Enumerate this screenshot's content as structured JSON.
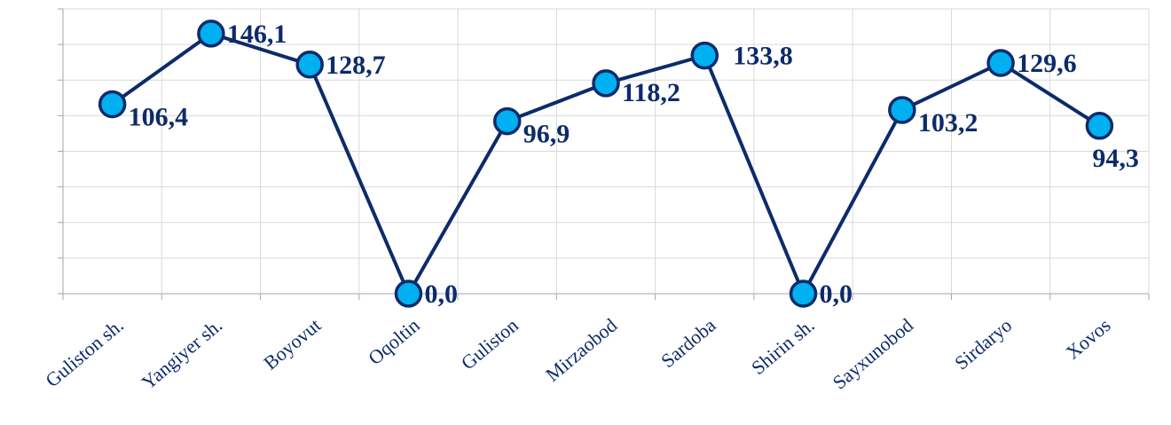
{
  "chart_data": {
    "type": "line",
    "title": "",
    "xlabel": "",
    "ylabel": "",
    "categories": [
      "Guliston  sh.",
      "Yangiyer sh.",
      "Boyovut",
      "Oqoltin",
      "Guliston",
      "Mirzaobod",
      "Sardoba",
      "Shirin sh.",
      "Sayxunobod",
      "Sirdaryo",
      "Xovos"
    ],
    "series": [
      {
        "values": [
          106.4,
          146.1,
          128.7,
          0.0,
          96.9,
          118.2,
          133.8,
          0.0,
          103.2,
          129.6,
          94.3
        ],
        "labels": [
          "106,4",
          "146,1",
          "128,7",
          "0,0",
          "96,9",
          "118,2",
          "133,8",
          "0,0",
          "103,2",
          "129,6",
          "94,3"
        ]
      }
    ],
    "ylim": [
      0,
      160
    ],
    "y_tick_count": 8,
    "grid": true,
    "legend": "none",
    "colors": {
      "line": "#0d2b6b",
      "marker_fill": "#00b0f0",
      "label": "#0d2b6b",
      "grid": "#d9d9d9"
    }
  }
}
